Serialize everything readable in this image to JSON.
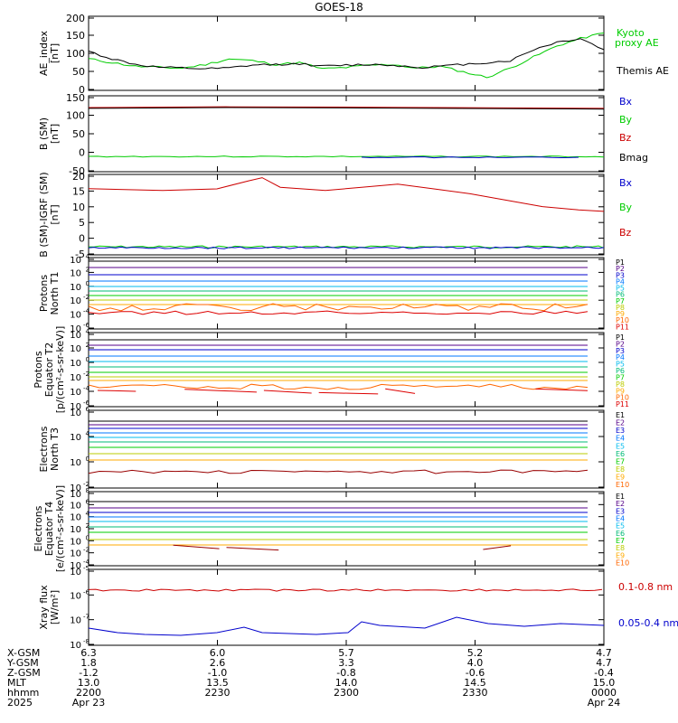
{
  "title": "GOES-18",
  "colors": {
    "black": "#000000",
    "green": "#00cc00",
    "blue": "#0000cc",
    "red": "#cc0000",
    "P": [
      "#000000",
      "#550088",
      "#0000cc",
      "#0077ff",
      "#00bbee",
      "#00bb77",
      "#00cc00",
      "#bbcc00",
      "#ffaa00",
      "#ff6600",
      "#dd0000",
      "#990000"
    ]
  },
  "chart_data": [
    {
      "type": "line",
      "ylabel": "AE_index\n[nT]",
      "ylim": [
        0,
        200
      ],
      "ticks": [
        "0",
        "50",
        "100",
        "150",
        "200"
      ],
      "x": [
        2148,
        2160,
        2172,
        2184,
        2196,
        2208,
        2220,
        2232,
        2244,
        2256,
        2268,
        2280,
        2292,
        2304,
        2316,
        2328,
        2340,
        2352,
        2364,
        2376,
        2388,
        2400,
        2412
      ],
      "series": [
        {
          "name": "Kyoto\nproxy AE",
          "color": "#00cc00",
          "values": [
            85,
            75,
            65,
            62,
            60,
            70,
            85,
            80,
            70,
            75,
            58,
            62,
            68,
            70,
            60,
            65,
            50,
            35,
            60,
            90,
            120,
            140,
            155
          ]
        },
        {
          "name": "Themis AE",
          "color": "#000000",
          "values": [
            105,
            85,
            70,
            62,
            60,
            58,
            60,
            68,
            70,
            72,
            65,
            68,
            70,
            68,
            62,
            65,
            70,
            75,
            80,
            110,
            130,
            140,
            110
          ]
        }
      ]
    },
    {
      "type": "line",
      "ylabel": "B (SM)\n[nT]",
      "ylim": [
        -50,
        150
      ],
      "ticks": [
        "-50",
        "0",
        "50",
        "100",
        "150"
      ],
      "series": [
        {
          "name": "Bx",
          "color": "#0000cc"
        },
        {
          "name": "By",
          "color": "#00cc00"
        },
        {
          "name": "Bz",
          "color": "#cc0000"
        },
        {
          "name": "Bmag",
          "color": "#000000"
        }
      ]
    },
    {
      "type": "line",
      "ylabel": "B (SM)-IGRF (SM)\n[nT]",
      "ylim": [
        -5,
        20
      ],
      "ticks": [
        "-5",
        "0",
        "5",
        "10",
        "15",
        "20"
      ],
      "series": [
        {
          "name": "Bx",
          "color": "#0000cc"
        },
        {
          "name": "By",
          "color": "#00cc00"
        },
        {
          "name": "Bz",
          "color": "#cc0000"
        }
      ]
    },
    {
      "type": "line",
      "ylabel": "Protons\nNorth T1",
      "ticks": [
        "10",
        "10",
        "10",
        "10",
        "10",
        "10"
      ],
      "tick_exponents": [
        "-6",
        "-4",
        "-2",
        "0",
        "2",
        "4"
      ],
      "legend": [
        "P1",
        "P2",
        "P3",
        "P4",
        "P5",
        "P6",
        "P7",
        "P8",
        "P9",
        "P10",
        "P11"
      ]
    },
    {
      "type": "line",
      "ylabel": "Protons\nEquator T2\n[p/(cm²-s-sr-keV)]",
      "ticks": [
        "10",
        "10",
        "10",
        "10",
        "10",
        "10"
      ],
      "tick_exponents": [
        "-6",
        "-4",
        "-2",
        "0",
        "2",
        "4"
      ],
      "legend": [
        "P1",
        "P2",
        "P3",
        "P4",
        "P5",
        "P6",
        "P7",
        "P8",
        "P9",
        "P10",
        "P11"
      ]
    },
    {
      "type": "line",
      "ylabel": "Electrons\nNorth T3",
      "ticks": [
        "10",
        "10",
        "10",
        "10"
      ],
      "tick_exponents": [
        "-2",
        "0",
        "4",
        "6"
      ],
      "legend": [
        "E1",
        "E2",
        "E3",
        "E4",
        "E5",
        "E6",
        "E7",
        "E8",
        "E9",
        "E10"
      ]
    },
    {
      "type": "line",
      "ylabel": "Electrons\nEquator T4\n[e/(cm²-s-sr-keV)]",
      "ticks": [
        "10",
        "10",
        "10",
        "10",
        "10",
        "10",
        "10"
      ],
      "tick_exponents": [
        "-4",
        "-2",
        "0",
        "2",
        "4",
        "6",
        "8"
      ],
      "legend": [
        "E1",
        "E2",
        "E3",
        "E4",
        "E5",
        "E6",
        "E7",
        "E8",
        "E9",
        "E10"
      ]
    },
    {
      "type": "line",
      "ylabel": "Xray flux\n[W/m²]",
      "ticks": [
        "10",
        "10",
        "10",
        "10"
      ],
      "tick_exponents": [
        "-8",
        "-7",
        "-6",
        "-5"
      ],
      "series": [
        {
          "name": "0.1-0.8 nm",
          "color": "#cc0000"
        },
        {
          "name": "0.05-0.4 nm",
          "color": "#0000cc"
        }
      ]
    }
  ],
  "footer": {
    "row_labels": [
      "X-GSM",
      "Y-GSM",
      "Z-GSM",
      "MLT",
      "hhmm",
      "2025"
    ],
    "columns": [
      [
        "6.3",
        "1.8",
        "-1.2",
        "13.0",
        "2200",
        "Apr 23"
      ],
      [
        "6.0",
        "2.6",
        "-1.0",
        "13.5",
        "2230",
        ""
      ],
      [
        "5.7",
        "3.3",
        "-0.8",
        "14.0",
        "2300",
        ""
      ],
      [
        "5.2",
        "4.0",
        "-0.6",
        "14.5",
        "2330",
        ""
      ],
      [
        "4.7",
        "4.7",
        "-0.4",
        "15.0",
        "0000",
        "Apr 24"
      ]
    ]
  }
}
